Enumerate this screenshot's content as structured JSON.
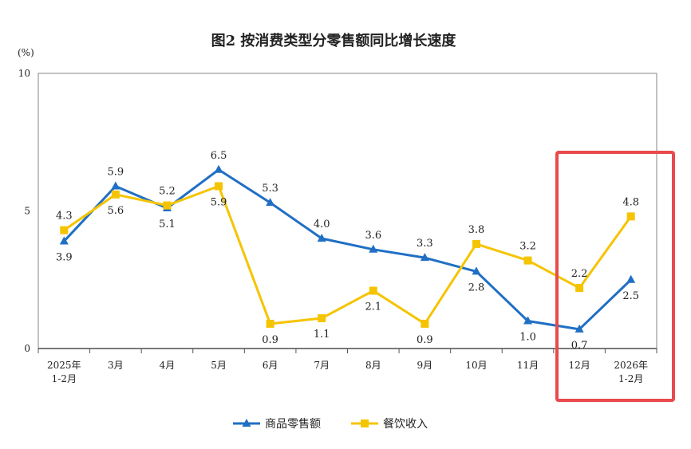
{
  "chart_data": {
    "type": "line",
    "title": "图2 按消费类型分零售额同比增长速度",
    "ylabel": "(%)",
    "xlabel": "",
    "ylim": [
      0,
      10
    ],
    "yticks": [
      "0",
      "5",
      "10"
    ],
    "categories": [
      [
        "2025年",
        "1-2月"
      ],
      [
        "3月"
      ],
      [
        "4月"
      ],
      [
        "5月"
      ],
      [
        "6月"
      ],
      [
        "7月"
      ],
      [
        "8月"
      ],
      [
        "9月"
      ],
      [
        "10月"
      ],
      [
        "11月"
      ],
      [
        "12月"
      ],
      [
        "2026年",
        "1-2月"
      ]
    ],
    "series": [
      {
        "name": "商品零售额",
        "color": "#1f6fc4",
        "marker": "triangle",
        "values": [
          3.9,
          5.9,
          5.1,
          6.5,
          5.3,
          4.0,
          3.6,
          3.3,
          2.8,
          1.0,
          0.7,
          2.5
        ],
        "labels": [
          "3.9",
          "5.9",
          "5.1",
          "6.5",
          "5.3",
          "4.0",
          "3.6",
          "3.3",
          "2.8",
          "1.0",
          "0.7",
          "2.5"
        ]
      },
      {
        "name": "餐饮收入",
        "color": "#f5c400",
        "marker": "square",
        "values": [
          4.3,
          5.6,
          5.2,
          5.9,
          0.9,
          1.1,
          2.1,
          0.9,
          3.8,
          3.2,
          2.2,
          4.8
        ],
        "labels": [
          "4.3",
          "5.6",
          "5.2",
          "5.9",
          "0.9",
          "1.1",
          "2.1",
          "0.9",
          "3.8",
          "3.2",
          "2.2",
          "4.8"
        ]
      }
    ],
    "legend": "bottom-center",
    "grid": false,
    "highlight": {
      "from_category": 10,
      "to_category": 11,
      "color": "#e84a4d"
    }
  }
}
